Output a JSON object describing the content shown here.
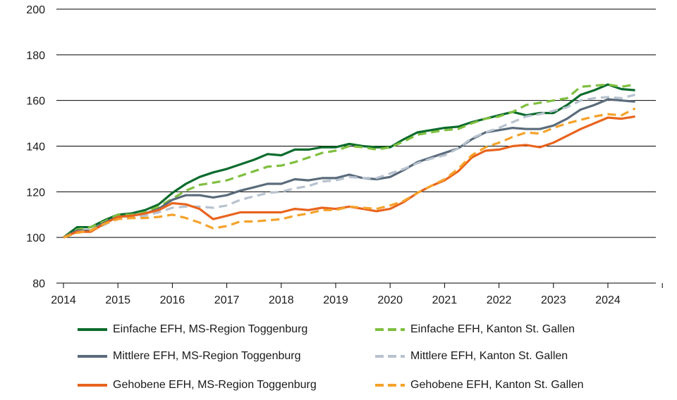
{
  "chart_data": {
    "type": "line",
    "title": "",
    "xlabel": "",
    "ylabel": "",
    "ylim": [
      80,
      200
    ],
    "yticks": [
      80,
      100,
      120,
      140,
      160,
      180,
      200
    ],
    "xlim": [
      2014,
      2025
    ],
    "xticks": [
      2014,
      2015,
      2016,
      2017,
      2018,
      2019,
      2020,
      2021,
      2022,
      2023,
      2024
    ],
    "x": [
      2014.0,
      2014.25,
      2014.5,
      2014.75,
      2015.0,
      2015.25,
      2015.5,
      2015.75,
      2016.0,
      2016.25,
      2016.5,
      2016.75,
      2017.0,
      2017.25,
      2017.5,
      2017.75,
      2018.0,
      2018.25,
      2018.5,
      2018.75,
      2019.0,
      2019.25,
      2019.5,
      2019.75,
      2020.0,
      2020.25,
      2020.5,
      2020.75,
      2021.0,
      2021.25,
      2021.5,
      2021.75,
      2022.0,
      2022.25,
      2022.5,
      2022.75,
      2023.0,
      2023.25,
      2023.5,
      2023.75,
      2024.0,
      2024.25,
      2024.5
    ],
    "series": [
      {
        "name": "Einfache EFH, MS-Region Toggenburg",
        "color": "#0a6b2c",
        "dashed": false,
        "values": [
          100,
          104.5,
          104.5,
          107.5,
          110,
          110.5,
          112,
          114.5,
          119.5,
          123.5,
          126.5,
          128.5,
          130,
          132,
          134,
          136.5,
          136,
          138.5,
          138.5,
          139.5,
          139.5,
          141,
          140,
          139.5,
          139.5,
          143,
          146,
          147,
          148,
          148.5,
          150.5,
          152,
          153.5,
          155,
          153.5,
          154.5,
          154.5,
          158,
          162.5,
          164.5,
          167,
          165,
          164.5
        ]
      },
      {
        "name": "Einfache EFH, Kanton St. Gallen",
        "color": "#7fbf3f",
        "dashed": true,
        "values": [
          100,
          103.5,
          104.5,
          107,
          110,
          110,
          111,
          113.5,
          117,
          120.5,
          123,
          124,
          125,
          127,
          129,
          131,
          131.5,
          133,
          135,
          137,
          138,
          140,
          139.5,
          138.5,
          139.5,
          142,
          145,
          146,
          147,
          147.5,
          150,
          152,
          153,
          155,
          158,
          159,
          160,
          161,
          166,
          166.5,
          167,
          166,
          167
        ]
      },
      {
        "name": "Mittlere EFH, MS-Region Toggenburg",
        "color": "#5a6b7b",
        "dashed": false,
        "values": [
          100,
          103,
          103,
          106.5,
          109,
          109.5,
          110.5,
          112.5,
          116.5,
          118.5,
          118.5,
          117.5,
          118.5,
          120.5,
          122,
          123.5,
          123.5,
          125.5,
          125,
          126,
          126,
          127.5,
          126,
          125.5,
          126.5,
          129.5,
          133,
          135,
          137,
          139,
          143,
          146,
          147,
          148,
          147.5,
          147.5,
          149,
          152,
          156,
          158,
          160.5,
          160,
          159.5
        ]
      },
      {
        "name": "Mittlere EFH, Kanton St. Gallen",
        "color": "#b8c2cf",
        "dashed": true,
        "values": [
          100,
          102.5,
          103,
          105.5,
          108.5,
          109,
          109.5,
          111,
          113,
          113.5,
          113.5,
          113,
          114,
          116.5,
          118,
          119.5,
          120,
          121.5,
          122.5,
          124.5,
          125,
          126.5,
          126,
          126,
          128,
          130,
          132.5,
          134.5,
          136,
          139,
          143.5,
          146,
          148,
          150.5,
          153,
          154,
          155.5,
          157,
          160,
          161,
          161.5,
          161,
          162.5
        ]
      },
      {
        "name": "Gehobene EFH, MS-Region Toggenburg",
        "color": "#e8641e",
        "dashed": false,
        "values": [
          100,
          102.5,
          102.5,
          106,
          109,
          109.5,
          110.5,
          112,
          115,
          114.5,
          112.5,
          108,
          109.5,
          111,
          111,
          111,
          111,
          112.5,
          112,
          113,
          112.5,
          113.5,
          112.5,
          111.5,
          112.5,
          115.5,
          119.5,
          122.5,
          125,
          129,
          135,
          138,
          138.5,
          140,
          140.5,
          139.5,
          141.5,
          144.5,
          147.5,
          150,
          152.5,
          152,
          153
        ]
      },
      {
        "name": "Gehobene EFH, Kanton St. Gallen",
        "color": "#f5a22a",
        "dashed": true,
        "values": [
          100,
          102,
          103,
          106,
          108,
          108.5,
          108.5,
          109,
          110,
          108.5,
          106.5,
          104,
          105,
          107,
          107,
          107.5,
          108,
          109.5,
          110.5,
          112,
          112,
          113.5,
          113,
          112.5,
          114,
          116,
          119.5,
          122.5,
          125.5,
          130,
          136,
          139.5,
          141.5,
          144,
          146,
          145.5,
          148,
          150,
          151.5,
          153,
          154,
          153.5,
          156.5
        ]
      }
    ]
  },
  "legend": {
    "items": [
      {
        "label": "Einfache EFH, MS-Region Toggenburg",
        "color": "#0a6b2c",
        "dashed": false
      },
      {
        "label": "Einfache EFH, Kanton St. Gallen",
        "color": "#7fbf3f",
        "dashed": true
      },
      {
        "label": "Mittlere EFH, MS-Region Toggenburg",
        "color": "#5a6b7b",
        "dashed": false
      },
      {
        "label": "Mittlere EFH, Kanton St. Gallen",
        "color": "#b8c2cf",
        "dashed": true
      },
      {
        "label": "Gehobene EFH, MS-Region Toggenburg",
        "color": "#e8641e",
        "dashed": false
      },
      {
        "label": "Gehobene EFH, Kanton St. Gallen",
        "color": "#f5a22a",
        "dashed": true
      }
    ]
  }
}
